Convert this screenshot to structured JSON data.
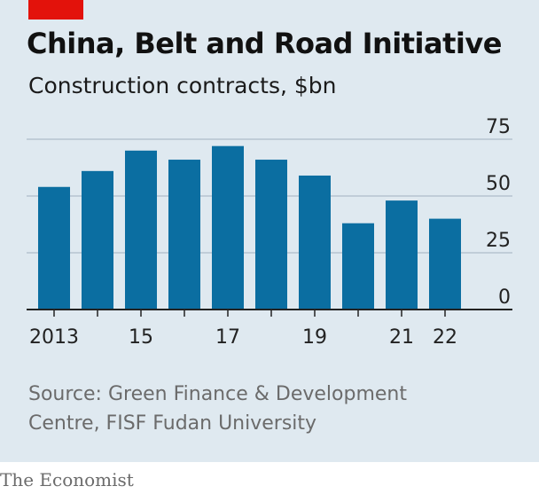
{
  "header": {
    "title": "China, Belt and Road Initiative",
    "subtitle": "Construction contracts, $bn"
  },
  "footer": {
    "source_line1": "Source: Green Finance & Development",
    "source_line2": "Centre, FISF Fudan University",
    "brand": "The Economist"
  },
  "colors": {
    "bar": "#0b6ea1",
    "accent": "#e3120b",
    "grid": "#aebdc9",
    "axis": "#222222",
    "background": "#dfe9f0"
  },
  "chart_data": {
    "type": "bar",
    "categories": [
      "2013",
      "2014",
      "2015",
      "2016",
      "2017",
      "2018",
      "2019",
      "2020",
      "2021",
      "2022"
    ],
    "values": [
      54,
      61,
      70,
      66,
      72,
      66,
      59,
      38,
      48,
      40
    ],
    "tick_labels": [
      "2013",
      "",
      "15",
      "",
      "17",
      "",
      "19",
      "",
      "21",
      "22"
    ],
    "title": "China, Belt and Road Initiative",
    "subtitle": "Construction contracts, $bn",
    "xlabel": "",
    "ylabel": "",
    "ylim": [
      0,
      75
    ],
    "yticks": [
      0,
      25,
      50,
      75
    ],
    "grid": true,
    "y_axis_side": "right"
  }
}
